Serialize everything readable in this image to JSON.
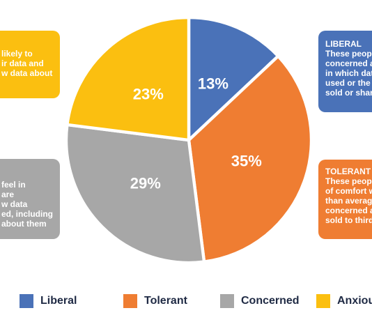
{
  "colors": {
    "liberal": "#4a72b8",
    "tolerant": "#ef7d32",
    "concerned": "#a7a7a7",
    "anxious": "#fbbf10"
  },
  "chart_data": {
    "type": "pie",
    "slices": [
      {
        "name": "Liberal",
        "value": 13,
        "label": "13%",
        "color": "#4a72b8"
      },
      {
        "name": "Tolerant",
        "value": 35,
        "label": "35%",
        "color": "#ef7d32"
      },
      {
        "name": "Concerned",
        "value": 29,
        "label": "29%",
        "color": "#a7a7a7"
      },
      {
        "name": "Anxious",
        "value": 23,
        "label": "23%",
        "color": "#fbbf10"
      }
    ],
    "start_angle_deg": 0,
    "direction": "clockwise",
    "legend": {
      "placement": "bottom",
      "entries": [
        "Liberal",
        "Tolerant",
        "Concerned",
        "Anxiou"
      ]
    }
  },
  "callouts": {
    "anxious": {
      "lines": [
        "likely to",
        "ir data and",
        "w data about"
      ]
    },
    "concerned": {
      "lines": [
        "feel in",
        "are",
        "w data",
        "ed, including",
        "about them"
      ]
    },
    "liberal": {
      "heading": "LIBERAL",
      "lines": [
        "These people",
        "concerned a",
        "in which dat",
        "used or the",
        "sold or shar"
      ]
    },
    "tolerant": {
      "heading": "TOLERANT",
      "lines": [
        "These peop",
        "of comfort w",
        "than averag",
        "concerned a",
        "sold to third"
      ]
    }
  }
}
